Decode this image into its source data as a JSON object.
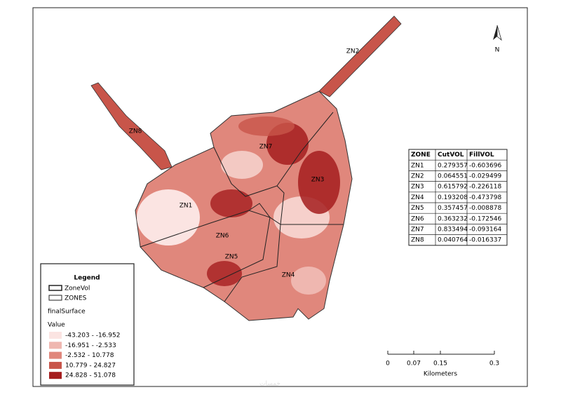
{
  "map": {
    "zone_labels": [
      "ZN1",
      "ZN2",
      "ZN3",
      "ZN4",
      "ZN5",
      "ZN6",
      "ZN7",
      "ZN8"
    ],
    "north": "N",
    "table": {
      "header": [
        "ZONE",
        "CutVOL",
        "FillVOL"
      ],
      "rows": [
        [
          "ZN1",
          "0.279357",
          "-0.603696"
        ],
        [
          "ZN2",
          "0.064551",
          "-0.029499"
        ],
        [
          "ZN3",
          "0.615792",
          "-0.226118"
        ],
        [
          "ZN4",
          "0.193208",
          "-0.473798"
        ],
        [
          "ZN5",
          "0.357457",
          "-0.008878"
        ],
        [
          "ZN6",
          "0.363232",
          "-0.172546"
        ],
        [
          "ZN7",
          "0.833494",
          "-0.093164"
        ],
        [
          "ZN8",
          "0.040764",
          "-0.016337"
        ]
      ]
    },
    "legend": {
      "title": "Legend",
      "layers": [
        "ZoneVol",
        "ZONES"
      ],
      "raster": "finalSurface",
      "field": "Value",
      "classes": [
        {
          "label": "-43.203 - -16.952",
          "color": "#fbe4e2"
        },
        {
          "label": "-16.951 - -2.533",
          "color": "#efb7b0"
        },
        {
          "label": "-2.532 - 10.778",
          "color": "#e0877c"
        },
        {
          "label": "10.779 - 24.827",
          "color": "#c8554a"
        },
        {
          "label": "24.828 - 51.078",
          "color": "#a51d1e"
        }
      ]
    },
    "scale_bar": {
      "ticks": [
        "0",
        "0.07",
        "0.15",
        "0.3"
      ],
      "unit": "Kilometers"
    },
    "watermark": "خمسات"
  }
}
